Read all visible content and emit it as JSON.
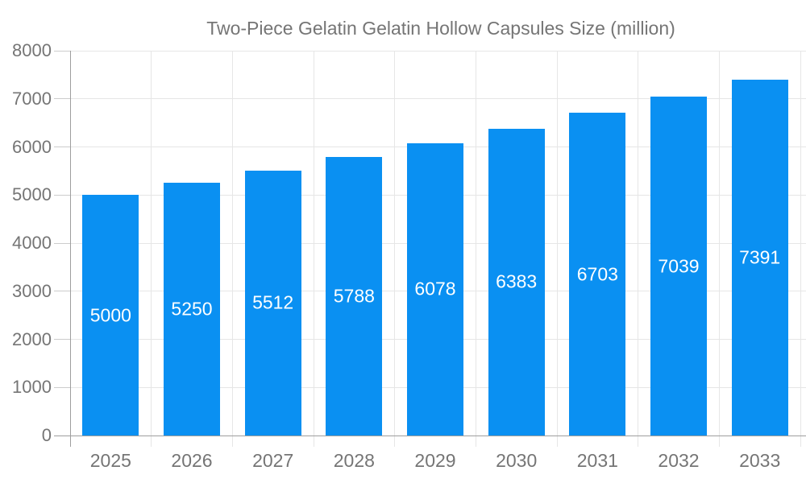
{
  "legend": {
    "label": "Two-Piece Gelatin Gelatin Hollow Capsules Size (million)"
  },
  "colors": {
    "bar": "#0a90f2",
    "grid": "#e6e6e6",
    "axis": "#9e9e9e",
    "tick_text": "#757575",
    "value_text": "#ffffff",
    "background": "#ffffff"
  },
  "chart_data": {
    "type": "bar",
    "title": "Two-Piece Gelatin Gelatin Hollow Capsules Size (million)",
    "series": [
      {
        "name": "Two-Piece Gelatin Gelatin Hollow Capsules Size (million)",
        "values": [
          5000,
          5250,
          5512,
          5788,
          6078,
          6383,
          6703,
          7039,
          7391
        ]
      }
    ],
    "categories": [
      "2025",
      "2026",
      "2027",
      "2028",
      "2029",
      "2030",
      "2031",
      "2032",
      "2033"
    ],
    "yticks": [
      "0",
      "1000",
      "2000",
      "3000",
      "4000",
      "5000",
      "6000",
      "7000",
      "8000"
    ],
    "ylim": [
      0,
      8000
    ],
    "xlabel": "",
    "ylabel": "",
    "grid": true,
    "legend_position": "top",
    "value_labels": "inside-middle"
  }
}
